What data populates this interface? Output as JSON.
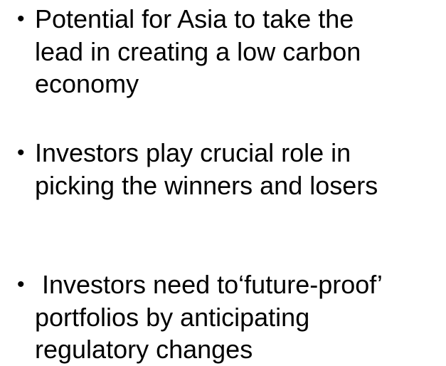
{
  "bullets": [
    {
      "lines": [
        "Potential for Asia to take the",
        "lead in creating a low carbon",
        "economy"
      ]
    },
    {
      "lines": [
        "Investors play crucial role in",
        "picking the winners and losers"
      ]
    },
    {
      "lines": [
        " Investors need to‘future-proof’",
        "portfolios by anticipating",
        "regulatory changes"
      ]
    }
  ]
}
